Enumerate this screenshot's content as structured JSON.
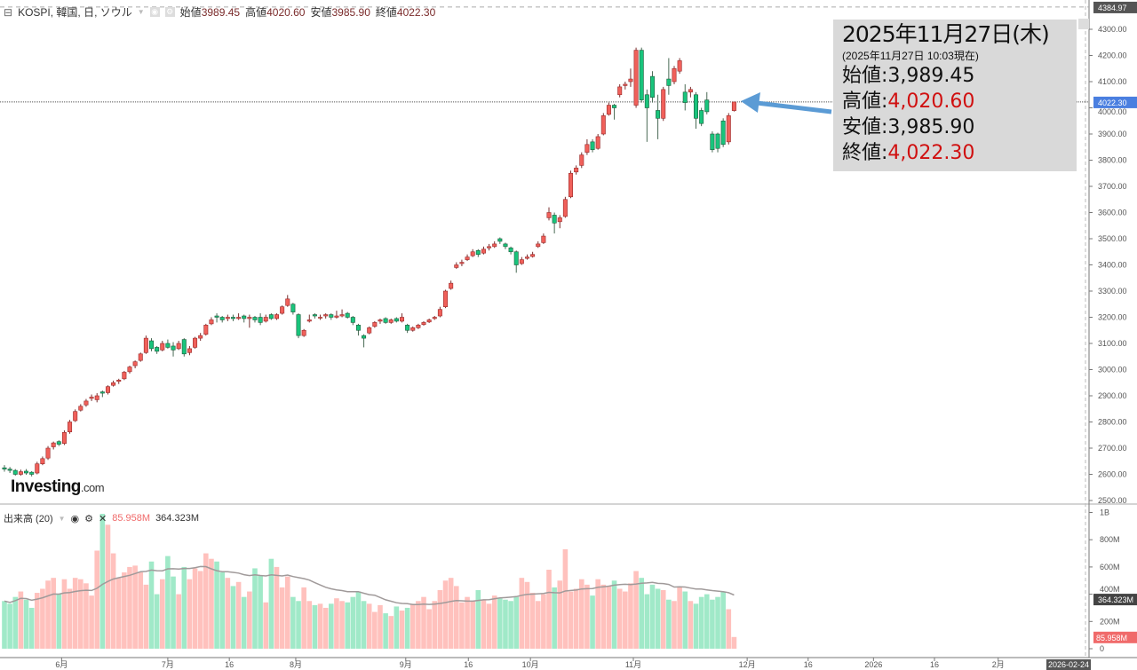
{
  "header": {
    "symbol": "KOSPI, 韓国, 日, ソウル",
    "open_label": "始値",
    "open": "3989.45",
    "high_label": "高値",
    "high": "4020.60",
    "low_label": "安値",
    "low": "3985.90",
    "close_label": "終値",
    "close": "4022.30"
  },
  "tooltip": {
    "date": "2025年11月27日(木)",
    "sub": "(2025年11月27日 10:03現在)",
    "open": "始値:3,989.45",
    "high_label": "高値:",
    "high": "4,020.60",
    "low": "安値:3,985.90",
    "close_label": "終値:",
    "close": "4,022.30"
  },
  "volume_header": {
    "label": "出来高 (20)",
    "value": "85.958M",
    "ma": "364.323M"
  },
  "logo": {
    "brand": "Investing",
    ".com": ".com"
  },
  "colors": {
    "up": "#f0605a",
    "down": "#19c47c",
    "vol_up": "#ffc1bd",
    "vol_down": "#a0e9c8",
    "ma": "#a09a9a",
    "last_price": "#4a7fe0",
    "arrow": "#5b9bd5"
  },
  "chart_data": {
    "type": "candlestick",
    "price_axis": {
      "ticks": [
        4300,
        4200,
        4100,
        4000,
        3900,
        3800,
        3700,
        3600,
        3500,
        3400,
        3300,
        3200,
        3100,
        3000,
        2900,
        2800,
        2700,
        2600,
        2500
      ],
      "tick_labels": [
        "4300.00",
        "4200.00",
        "4100.00",
        "4000.00",
        "3900.00",
        "3800.00",
        "3700.00",
        "3600.00",
        "3500.00",
        "3400.00",
        "3300.00",
        "3200.00",
        "3100.00",
        "3000.00",
        "2900.00",
        "2800.00",
        "2700.00",
        "2600.00",
        "2500.00"
      ],
      "max_label": "4384.97",
      "last_label": "4022.30",
      "max": 4384.97,
      "last": 4022.3
    },
    "volume_axis": {
      "tick_labels": [
        "1B",
        "800M",
        "600M",
        "400M",
        "200M",
        "0"
      ],
      "ticks": [
        1000,
        800,
        600,
        400,
        200,
        0
      ],
      "last_label": "85.958M",
      "ma_label": "364.323M",
      "ma_last": 364.323
    },
    "time_axis": {
      "labels": [
        {
          "t": "6月",
          "i": 10.5
        },
        {
          "t": "7月",
          "i": 30
        },
        {
          "t": "16",
          "i": 41.3
        },
        {
          "t": "8月",
          "i": 53.5
        },
        {
          "t": "9月",
          "i": 73.7
        },
        {
          "t": "16",
          "i": 85.2
        },
        {
          "t": "10月",
          "i": 96.6
        },
        {
          "t": "11月",
          "i": 115.5
        },
        {
          "t": "12月",
          "i": 136.4
        },
        {
          "t": "16",
          "i": 147.6
        },
        {
          "t": "2026",
          "i": 159.6
        },
        {
          "t": "16",
          "i": 170.8
        },
        {
          "t": "2月",
          "i": 182.5
        }
      ],
      "cursor_label": "2026-02-24"
    },
    "ohlc": [
      [
        2625,
        2635,
        2610,
        2620
      ],
      [
        2620,
        2628,
        2605,
        2615
      ],
      [
        2615,
        2620,
        2595,
        2600
      ],
      [
        2600,
        2618,
        2595,
        2610
      ],
      [
        2612,
        2620,
        2598,
        2605
      ],
      [
        2608,
        2612,
        2592,
        2600
      ],
      [
        2605,
        2648,
        2600,
        2640
      ],
      [
        2640,
        2668,
        2635,
        2660
      ],
      [
        2662,
        2708,
        2655,
        2700
      ],
      [
        2705,
        2725,
        2695,
        2720
      ],
      [
        2725,
        2730,
        2708,
        2715
      ],
      [
        2718,
        2768,
        2712,
        2760
      ],
      [
        2762,
        2808,
        2755,
        2800
      ],
      [
        2805,
        2848,
        2800,
        2840
      ],
      [
        2845,
        2868,
        2840,
        2860
      ],
      [
        2865,
        2888,
        2858,
        2880
      ],
      [
        2890,
        2905,
        2880,
        2895
      ],
      [
        2885,
        2910,
        2875,
        2900
      ],
      [
        2915,
        2920,
        2895,
        2910
      ],
      [
        2912,
        2940,
        2905,
        2935
      ],
      [
        2940,
        2958,
        2935,
        2950
      ],
      [
        2955,
        2965,
        2945,
        2960
      ],
      [
        2965,
        2995,
        2960,
        2990
      ],
      [
        2992,
        3015,
        2985,
        3010
      ],
      [
        3015,
        3035,
        3005,
        3030
      ],
      [
        3035,
        3065,
        3030,
        3060
      ],
      [
        3065,
        3130,
        3060,
        3120
      ],
      [
        3110,
        3120,
        3070,
        3080
      ],
      [
        3085,
        3090,
        3060,
        3070
      ],
      [
        3075,
        3110,
        3070,
        3100
      ],
      [
        3100,
        3115,
        3080,
        3085
      ],
      [
        3090,
        3105,
        3050,
        3075
      ],
      [
        3080,
        3110,
        3075,
        3100
      ],
      [
        3115,
        3120,
        3050,
        3060
      ],
      [
        3065,
        3090,
        3055,
        3080
      ],
      [
        3085,
        3125,
        3080,
        3120
      ],
      [
        3120,
        3140,
        3110,
        3130
      ],
      [
        3135,
        3175,
        3130,
        3170
      ],
      [
        3175,
        3200,
        3170,
        3190
      ],
      [
        3205,
        3215,
        3180,
        3200
      ],
      [
        3200,
        3205,
        3180,
        3190
      ],
      [
        3195,
        3210,
        3185,
        3200
      ],
      [
        3200,
        3210,
        3185,
        3195
      ],
      [
        3195,
        3215,
        3190,
        3200
      ],
      [
        3205,
        3210,
        3180,
        3195
      ],
      [
        3195,
        3210,
        3160,
        3200
      ],
      [
        3200,
        3205,
        3180,
        3190
      ],
      [
        3200,
        3215,
        3170,
        3180
      ],
      [
        3185,
        3210,
        3180,
        3200
      ],
      [
        3210,
        3215,
        3190,
        3195
      ],
      [
        3195,
        3215,
        3190,
        3210
      ],
      [
        3215,
        3245,
        3210,
        3240
      ],
      [
        3245,
        3285,
        3240,
        3270
      ],
      [
        3250,
        3255,
        3210,
        3220
      ],
      [
        3210,
        3215,
        3120,
        3130
      ],
      [
        3130,
        3155,
        3125,
        3150
      ],
      [
        3185,
        3210,
        3180,
        3190
      ],
      [
        3210,
        3215,
        3195,
        3205
      ],
      [
        3200,
        3210,
        3190,
        3200
      ],
      [
        3205,
        3215,
        3195,
        3210
      ],
      [
        3210,
        3215,
        3190,
        3200
      ],
      [
        3200,
        3225,
        3195,
        3205
      ],
      [
        3205,
        3230,
        3200,
        3210
      ],
      [
        3215,
        3220,
        3195,
        3200
      ],
      [
        3200,
        3205,
        3170,
        3180
      ],
      [
        3170,
        3175,
        3130,
        3150
      ],
      [
        3130,
        3135,
        3085,
        3120
      ],
      [
        3140,
        3165,
        3135,
        3160
      ],
      [
        3165,
        3185,
        3160,
        3180
      ],
      [
        3185,
        3195,
        3175,
        3190
      ],
      [
        3195,
        3200,
        3175,
        3180
      ],
      [
        3180,
        3195,
        3175,
        3190
      ],
      [
        3195,
        3200,
        3180,
        3185
      ],
      [
        3185,
        3215,
        3180,
        3200
      ],
      [
        3170,
        3175,
        3140,
        3150
      ],
      [
        3150,
        3165,
        3145,
        3160
      ],
      [
        3160,
        3175,
        3155,
        3170
      ],
      [
        3172,
        3185,
        3168,
        3180
      ],
      [
        3182,
        3195,
        3178,
        3190
      ],
      [
        3195,
        3205,
        3190,
        3200
      ],
      [
        3205,
        3240,
        3200,
        3230
      ],
      [
        3240,
        3305,
        3235,
        3300
      ],
      [
        3310,
        3340,
        3305,
        3330
      ],
      [
        3390,
        3410,
        3385,
        3400
      ],
      [
        3405,
        3420,
        3395,
        3410
      ],
      [
        3420,
        3440,
        3415,
        3430
      ],
      [
        3435,
        3460,
        3430,
        3450
      ],
      [
        3455,
        3460,
        3430,
        3440
      ],
      [
        3445,
        3470,
        3440,
        3460
      ],
      [
        3465,
        3480,
        3455,
        3470
      ],
      [
        3470,
        3490,
        3465,
        3480
      ],
      [
        3500,
        3505,
        3480,
        3490
      ],
      [
        3480,
        3485,
        3460,
        3470
      ],
      [
        3465,
        3470,
        3440,
        3450
      ],
      [
        3450,
        3455,
        3370,
        3400
      ],
      [
        3405,
        3430,
        3400,
        3420
      ],
      [
        3425,
        3440,
        3420,
        3430
      ],
      [
        3432,
        3450,
        3428,
        3440
      ],
      [
        3470,
        3490,
        3465,
        3480
      ],
      [
        3485,
        3520,
        3480,
        3510
      ],
      [
        3580,
        3620,
        3570,
        3600
      ],
      [
        3590,
        3600,
        3520,
        3560
      ],
      [
        3565,
        3590,
        3540,
        3580
      ],
      [
        3585,
        3660,
        3580,
        3650
      ],
      [
        3660,
        3760,
        3655,
        3750
      ],
      [
        3755,
        3780,
        3745,
        3770
      ],
      [
        3780,
        3830,
        3770,
        3820
      ],
      [
        3830,
        3880,
        3820,
        3860
      ],
      [
        3870,
        3880,
        3830,
        3840
      ],
      [
        3845,
        3900,
        3840,
        3890
      ],
      [
        3900,
        3980,
        3895,
        3970
      ],
      [
        3975,
        4020,
        3970,
        4010
      ],
      [
        4010,
        4015,
        3955,
        4000
      ],
      [
        4050,
        4090,
        4040,
        4080
      ],
      [
        4085,
        4100,
        4070,
        4090
      ],
      [
        4100,
        4150,
        4080,
        4110
      ],
      [
        4010,
        4230,
        4000,
        4220
      ],
      [
        4220,
        4230,
        4020,
        4030
      ],
      [
        4050,
        4070,
        3870,
        4000
      ],
      [
        4120,
        4140,
        4020,
        4040
      ],
      [
        3990,
        4050,
        3880,
        3960
      ],
      [
        3960,
        4080,
        3950,
        4070
      ],
      [
        4110,
        4190,
        4050,
        4085
      ],
      [
        4100,
        4160,
        4090,
        4150
      ],
      [
        4140,
        4190,
        4130,
        4180
      ],
      [
        4060,
        4090,
        3990,
        4020
      ],
      [
        4060,
        4080,
        4040,
        4070
      ],
      [
        4050,
        4060,
        3920,
        3960
      ],
      [
        3990,
        4000,
        3930,
        3940
      ],
      [
        4030,
        4060,
        3975,
        3985
      ],
      [
        3900,
        3910,
        3830,
        3840
      ],
      [
        3900,
        3905,
        3830,
        3845
      ],
      [
        3950,
        3960,
        3850,
        3860
      ],
      [
        3870,
        3980,
        3860,
        3970
      ],
      [
        3989.45,
        4020.6,
        3985.9,
        4022.3
      ]
    ],
    "volume_m": [
      350,
      330,
      380,
      420,
      360,
      300,
      410,
      440,
      500,
      520,
      400,
      510,
      440,
      520,
      510,
      480,
      390,
      720,
      990,
      910,
      700,
      520,
      560,
      600,
      610,
      560,
      470,
      640,
      400,
      510,
      680,
      530,
      400,
      600,
      510,
      590,
      570,
      700,
      660,
      640,
      560,
      520,
      460,
      490,
      380,
      420,
      590,
      540,
      340,
      660,
      600,
      450,
      530,
      380,
      350,
      450,
      350,
      320,
      330,
      300,
      330,
      370,
      350,
      340,
      380,
      420,
      350,
      330,
      270,
      320,
      260,
      240,
      310,
      280,
      300,
      330,
      350,
      380,
      290,
      350,
      430,
      500,
      520,
      460,
      340,
      380,
      350,
      430,
      360,
      330,
      390,
      370,
      360,
      350,
      380,
      520,
      490,
      410,
      350,
      400,
      580,
      450,
      500,
      730,
      420,
      440,
      510,
      470,
      390,
      510,
      470,
      460,
      500,
      440,
      420,
      480,
      570,
      520,
      400,
      470,
      440,
      430,
      360,
      350,
      450,
      420,
      350,
      330,
      380,
      400,
      360,
      380,
      420,
      290,
      85.958
    ],
    "volume_ma_period": 20
  }
}
